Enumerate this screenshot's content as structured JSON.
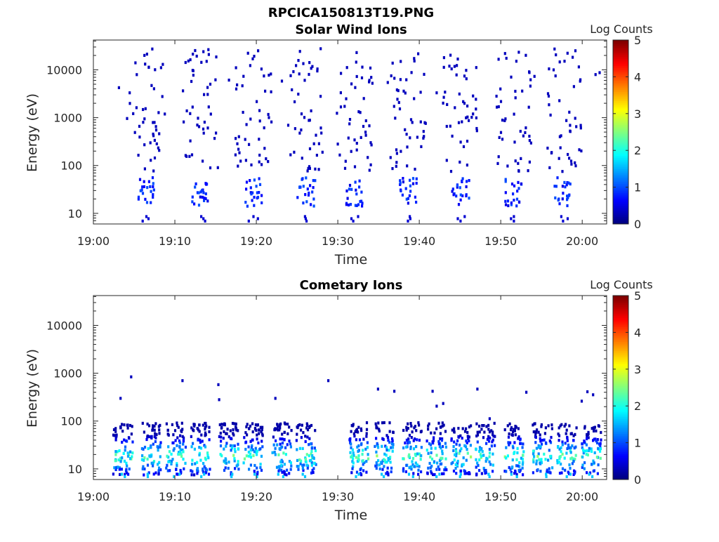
{
  "figure_title": "RPCICA150813T19.PNG",
  "chart_data": [
    {
      "type": "heatmap",
      "title": "Solar Wind Ions",
      "xlabel": "Time",
      "ylabel": "Energy (eV)",
      "x_ticks": [
        "19:00",
        "19:10",
        "19:20",
        "19:30",
        "19:40",
        "19:50",
        "20:00"
      ],
      "x_range_minutes": [
        0,
        63
      ],
      "y_ticks": [
        "10",
        "100",
        "1000",
        "10000"
      ],
      "y_range_ev": [
        6,
        42000
      ],
      "y_scale": "log",
      "colorbar": {
        "label": "Log Counts",
        "range": [
          0,
          5
        ],
        "ticks": [
          "0",
          "1",
          "2",
          "3",
          "4",
          "5"
        ],
        "colormap": "jet"
      },
      "cluster_centers_min": [
        6.5,
        13,
        19.5,
        26,
        32,
        38.5,
        45,
        51.5,
        57.5
      ],
      "low_energy_band_ev": [
        15,
        60
      ],
      "low_energy_level": 0.8,
      "sparse_range_ev": [
        80,
        30000
      ],
      "sparse_level": 0.3
    },
    {
      "type": "heatmap",
      "title": "Cometary Ions",
      "xlabel": "Time",
      "ylabel": "Energy (eV)",
      "x_ticks": [
        "19:00",
        "19:10",
        "19:20",
        "19:30",
        "19:40",
        "19:50",
        "20:00"
      ],
      "x_range_minutes": [
        0,
        63
      ],
      "y_ticks": [
        "10",
        "100",
        "1000",
        "10000"
      ],
      "y_range_ev": [
        6,
        42000
      ],
      "y_scale": "log",
      "colorbar": {
        "label": "Log Counts",
        "range": [
          0,
          5
        ],
        "ticks": [
          "0",
          "1",
          "2",
          "3",
          "4",
          "5"
        ],
        "colormap": "jet"
      },
      "cluster_centers_min": [
        3.5,
        7,
        10,
        13,
        16.5,
        19.5,
        23,
        26,
        32.5,
        35.5,
        39,
        42,
        45,
        48,
        51.5,
        55,
        58,
        61
      ],
      "band_ev": [
        8,
        100
      ],
      "peak_level": 2.6
    }
  ]
}
